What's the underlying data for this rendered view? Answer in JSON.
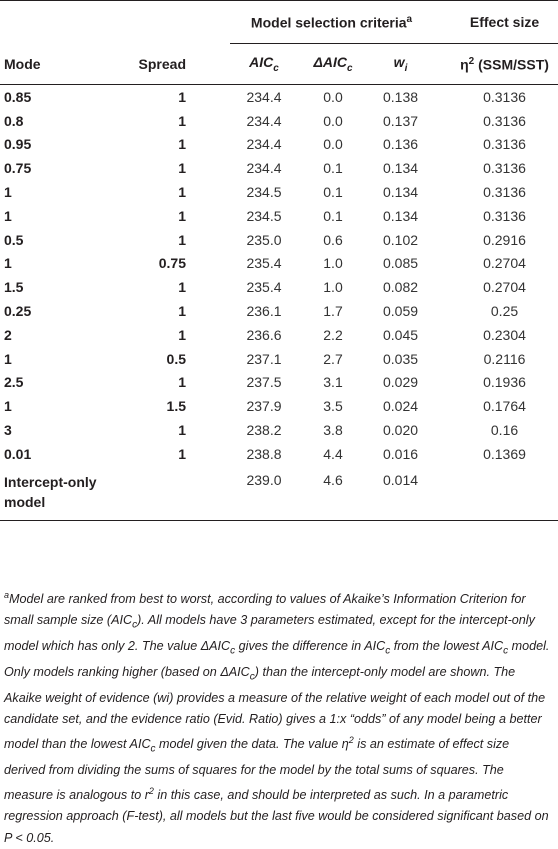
{
  "header": {
    "group_selection": "Model selection criteria",
    "group_selection_note": "a",
    "group_effect": "Effect size",
    "col_mode": "Mode",
    "col_spread": "Spread",
    "col_aic": "AIC",
    "col_aic_sub": "c",
    "col_daic": "ΔAIC",
    "col_daic_sub": "c",
    "col_w": "w",
    "col_w_sub": "i",
    "col_eta": "η",
    "col_eta_sup": "2",
    "col_eta_rest": " (SSM/SST)"
  },
  "rows": [
    {
      "mode": "0.85",
      "spread": "1",
      "aic": "234.4",
      "daic": "0.0",
      "w": "0.138",
      "eta": "0.3136"
    },
    {
      "mode": "0.8",
      "spread": "1",
      "aic": "234.4",
      "daic": "0.0",
      "w": "0.137",
      "eta": "0.3136"
    },
    {
      "mode": "0.95",
      "spread": "1",
      "aic": "234.4",
      "daic": "0.0",
      "w": "0.136",
      "eta": "0.3136"
    },
    {
      "mode": "0.75",
      "spread": "1",
      "aic": "234.4",
      "daic": "0.1",
      "w": "0.134",
      "eta": "0.3136"
    },
    {
      "mode": "1",
      "spread": "1",
      "aic": "234.5",
      "daic": "0.1",
      "w": "0.134",
      "eta": "0.3136"
    },
    {
      "mode": "1",
      "spread": "1",
      "aic": "234.5",
      "daic": "0.1",
      "w": "0.134",
      "eta": "0.3136"
    },
    {
      "mode": "0.5",
      "spread": "1",
      "aic": "235.0",
      "daic": "0.6",
      "w": "0.102",
      "eta": "0.2916"
    },
    {
      "mode": "1",
      "spread": "0.75",
      "aic": "235.4",
      "daic": "1.0",
      "w": "0.085",
      "eta": "0.2704"
    },
    {
      "mode": "1.5",
      "spread": "1",
      "aic": "235.4",
      "daic": "1.0",
      "w": "0.082",
      "eta": "0.2704"
    },
    {
      "mode": "0.25",
      "spread": "1",
      "aic": "236.1",
      "daic": "1.7",
      "w": "0.059",
      "eta": "0.25"
    },
    {
      "mode": "2",
      "spread": "1",
      "aic": "236.6",
      "daic": "2.2",
      "w": "0.045",
      "eta": "0.2304"
    },
    {
      "mode": "1",
      "spread": "0.5",
      "aic": "237.1",
      "daic": "2.7",
      "w": "0.035",
      "eta": "0.2116"
    },
    {
      "mode": "2.5",
      "spread": "1",
      "aic": "237.5",
      "daic": "3.1",
      "w": "0.029",
      "eta": "0.1936"
    },
    {
      "mode": "1",
      "spread": "1.5",
      "aic": "237.9",
      "daic": "3.5",
      "w": "0.024",
      "eta": "0.1764"
    },
    {
      "mode": "3",
      "spread": "1",
      "aic": "238.2",
      "daic": "3.8",
      "w": "0.020",
      "eta": "0.16"
    },
    {
      "mode": "0.01",
      "spread": "1",
      "aic": "238.8",
      "daic": "4.4",
      "w": "0.016",
      "eta": "0.1369"
    }
  ],
  "last_row": {
    "mode_line1": "Intercept-only",
    "mode_line2": "model",
    "spread": "",
    "aic": "239.0",
    "daic": "4.6",
    "w": "0.014",
    "eta": ""
  },
  "footnote": {
    "marker": "a",
    "p1": "Model are ranked from best to worst, according to values of Akaike’s Information Criterion for small sample size (AIC",
    "p1_sub": "c",
    "p2": "). All models have 3 parameters estimated, except for the intercept-only model which has only 2. The value ΔAIC",
    "p2_sub": "c",
    "p3": " gives the difference in AIC",
    "p3_sub": "c",
    "p4": " from the lowest AIC",
    "p4_sub": "c",
    "p5": " model. Only models ranking higher (based on ΔAIC",
    "p5_sub": "c",
    "p6": ") than the intercept-only model are shown. The Akaike weight of evidence (wi) provides a measure of the relative weight of each model out of the candidate set, and the evidence ratio (Evid. Ratio) gives a 1:x “odds” of any model being a better model than the lowest AIC",
    "p6_sub": "c",
    "p7": " model given the data. The value η",
    "p7_sup": "2",
    "p8": " is an estimate of effect size derived from dividing the sums of squares for the model by the total sums of squares. The measure is analogous to r",
    "p8_sup": "2",
    "p9": " in this case, and should be interpreted as such. In a parametric regression approach (F-test), all models but the last five would be considered significant based on P < 0.05."
  }
}
